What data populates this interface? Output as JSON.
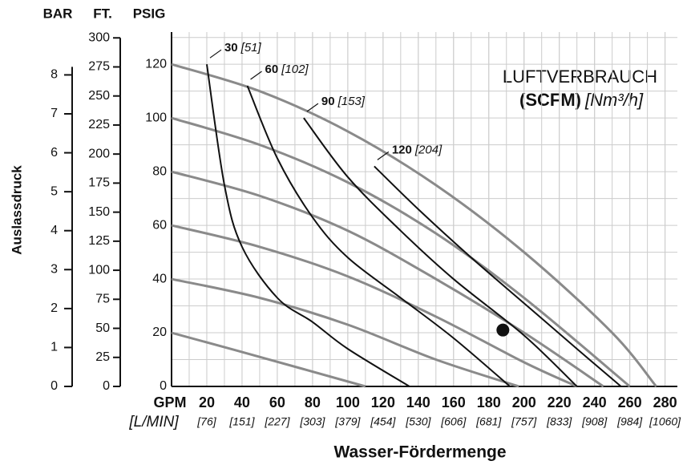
{
  "chart_data": {
    "type": "pump-curve",
    "bar_title": "BAR",
    "ft_title": "FT.",
    "psig_title": "PSIG",
    "y_title": "Auslassdruck",
    "x_title": "Wasser-Fördermenge",
    "x_unit": "GPM",
    "x_unit_metric": "[L/MIN]",
    "legend_title": "LUFTVERBRAUCH",
    "legend_unit": "(SCFM)",
    "legend_unit_metric": "[Nm³/h]",
    "xlim": [
      0,
      287
    ],
    "xticks": [
      20,
      40,
      60,
      80,
      100,
      120,
      140,
      160,
      180,
      200,
      220,
      240,
      260,
      280
    ],
    "xticks_metric": [
      "[76]",
      "[151]",
      "[227]",
      "[303]",
      "[379]",
      "[454]",
      "[530]",
      "[606]",
      "[681]",
      "[757]",
      "[833]",
      "[908]",
      "[984]",
      "[1060]"
    ],
    "ylim": [
      0,
      132
    ],
    "yticks": [
      0,
      20,
      40,
      60,
      80,
      100,
      120
    ],
    "ftlim": [
      0,
      305
    ],
    "ftticks": [
      0,
      25,
      50,
      75,
      100,
      125,
      150,
      175,
      200,
      225,
      250,
      275,
      300
    ],
    "barlim": [
      0,
      9.1
    ],
    "barticks": [
      0,
      1,
      2,
      3,
      4,
      5,
      6,
      7,
      8
    ],
    "grid": true,
    "pressure_color": "#8a8a8a",
    "air_color": "#111111",
    "pressure_curves": [
      {
        "x": [
          0,
          50,
          100,
          150,
          200,
          250,
          275
        ],
        "y": [
          120,
          110,
          95,
          75,
          50,
          20,
          0
        ]
      },
      {
        "x": [
          0,
          50,
          100,
          150,
          200,
          260
        ],
        "y": [
          100,
          90,
          76,
          57,
          33,
          0
        ]
      },
      {
        "x": [
          0,
          50,
          100,
          150,
          200,
          245
        ],
        "y": [
          80,
          71,
          58,
          40,
          20,
          0
        ]
      },
      {
        "x": [
          0,
          50,
          100,
          150,
          200,
          230
        ],
        "y": [
          60,
          52,
          41,
          26,
          9,
          0
        ]
      },
      {
        "x": [
          0,
          50,
          100,
          150,
          197
        ],
        "y": [
          40,
          33,
          23,
          10,
          0
        ]
      },
      {
        "x": [
          0,
          50,
          110
        ],
        "y": [
          20,
          11,
          0
        ]
      }
    ],
    "air_curves": [
      {
        "name": "30",
        "name_metric": "[51]",
        "x": [
          20,
          30,
          40,
          60,
          80,
          100,
          135
        ],
        "y": [
          120,
          75,
          52,
          33,
          24,
          14,
          0
        ]
      },
      {
        "name": "60",
        "name_metric": "[102]",
        "x": [
          43,
          60,
          80,
          100,
          130,
          160,
          192
        ],
        "y": [
          112,
          85,
          63,
          48,
          33,
          18,
          0
        ]
      },
      {
        "name": "90",
        "name_metric": "[153]",
        "x": [
          75,
          100,
          130,
          160,
          200,
          230
        ],
        "y": [
          100,
          78,
          58,
          40,
          19,
          0
        ]
      },
      {
        "name": "120",
        "name_metric": "[204]",
        "x": [
          115,
          140,
          170,
          200,
          230,
          255
        ],
        "y": [
          82,
          66,
          48,
          31,
          14,
          0
        ]
      }
    ],
    "marker": {
      "x": 188,
      "y": 21
    }
  }
}
